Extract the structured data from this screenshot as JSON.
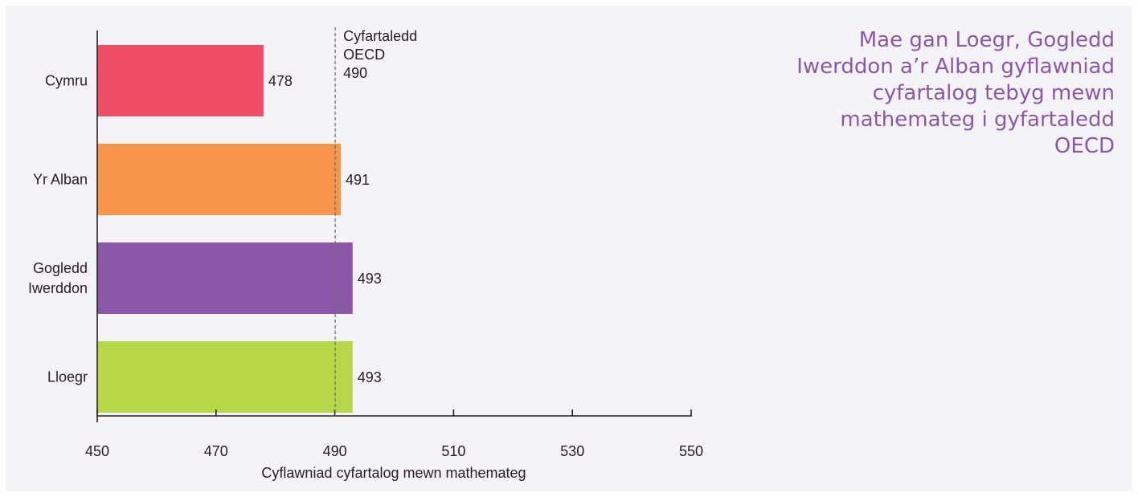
{
  "headline": "Mae gan Loegr, Gogledd Iwerddon a’r Alban gyflawniad cyfartalog tebyg mewn mathemateg i gyfartaledd OECD",
  "colors": {
    "headline": "#8a58a6",
    "panel": "#f5f3f8",
    "axis": "#231f20",
    "reference_line": "#6d6d6d"
  },
  "chart_data": {
    "type": "bar",
    "orientation": "horizontal",
    "categories": [
      {
        "lines": [
          "Cymru"
        ],
        "value": 478,
        "label": "478",
        "color": "#ef4c68"
      },
      {
        "lines": [
          "Yr Alban"
        ],
        "value": 491,
        "label": "491",
        "color": "#f7954a"
      },
      {
        "lines": [
          "Gogledd",
          "Iwerddon"
        ],
        "value": 493,
        "label": "493",
        "color": "#8a58a6"
      },
      {
        "lines": [
          "Lloegr"
        ],
        "value": 493,
        "label": "493",
        "color": "#b8d748"
      }
    ],
    "xlim": [
      450,
      550
    ],
    "xticks": [
      450,
      470,
      490,
      510,
      530,
      550
    ],
    "xlabel": "Cyflawniad cyfartalog mewn mathemateg",
    "ylabel": "",
    "reference": {
      "value": 490,
      "label_lines": [
        "Cyfartaledd",
        "OECD",
        "490"
      ],
      "style": "dashed"
    },
    "grid": false
  }
}
